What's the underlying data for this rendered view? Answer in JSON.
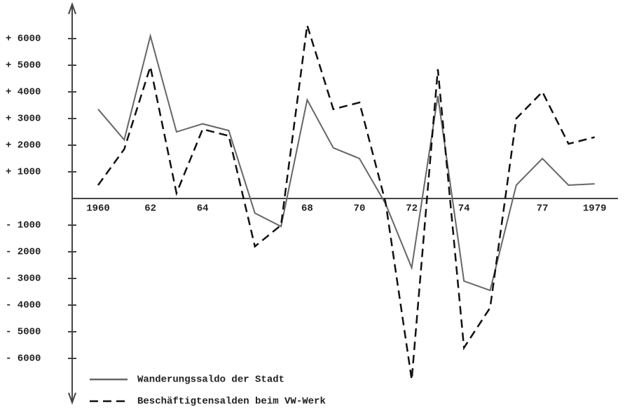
{
  "chart_data": {
    "type": "line",
    "categories": [
      "1960",
      null,
      "62",
      null,
      "64",
      null,
      null,
      null,
      "68",
      null,
      "70",
      null,
      "72",
      null,
      "74",
      null,
      null,
      "77",
      null,
      "1979"
    ],
    "series": [
      {
        "name": "Wanderungssaldo der Stadt",
        "color": "#666666",
        "dash": false,
        "values": [
          3350,
          2200,
          6100,
          2500,
          2800,
          2550,
          -550,
          -1050,
          3700,
          1900,
          1500,
          -200,
          -2600,
          3850,
          -3100,
          -3450,
          500,
          1500,
          500,
          550
        ]
      },
      {
        "name": "Beschäftigtensalden beim VW-Werk",
        "color": "#111111",
        "dash": true,
        "values": [
          500,
          1850,
          4950,
          200,
          2600,
          2350,
          -1800,
          -1000,
          6500,
          3350,
          3600,
          -150,
          -6800,
          4850,
          -5600,
          -4100,
          3000,
          4000,
          2050,
          2300
        ]
      }
    ],
    "ylim": [
      -7500,
      7000
    ],
    "yticks": [
      {
        "value": 6000,
        "label": "+ 6000"
      },
      {
        "value": 5000,
        "label": "+ 5000"
      },
      {
        "value": 4000,
        "label": "+ 4000"
      },
      {
        "value": 3000,
        "label": "+ 3000"
      },
      {
        "value": 2000,
        "label": "+ 2000"
      },
      {
        "value": 1000,
        "label": "+ 1000"
      },
      {
        "value": -1000,
        "label": "- 1000"
      },
      {
        "value": -2000,
        "label": "- 2000"
      },
      {
        "value": -3000,
        "label": "- 3000"
      },
      {
        "value": -4000,
        "label": "- 4000"
      },
      {
        "value": -5000,
        "label": "- 5000"
      },
      {
        "value": -6000,
        "label": "- 6000"
      }
    ]
  }
}
